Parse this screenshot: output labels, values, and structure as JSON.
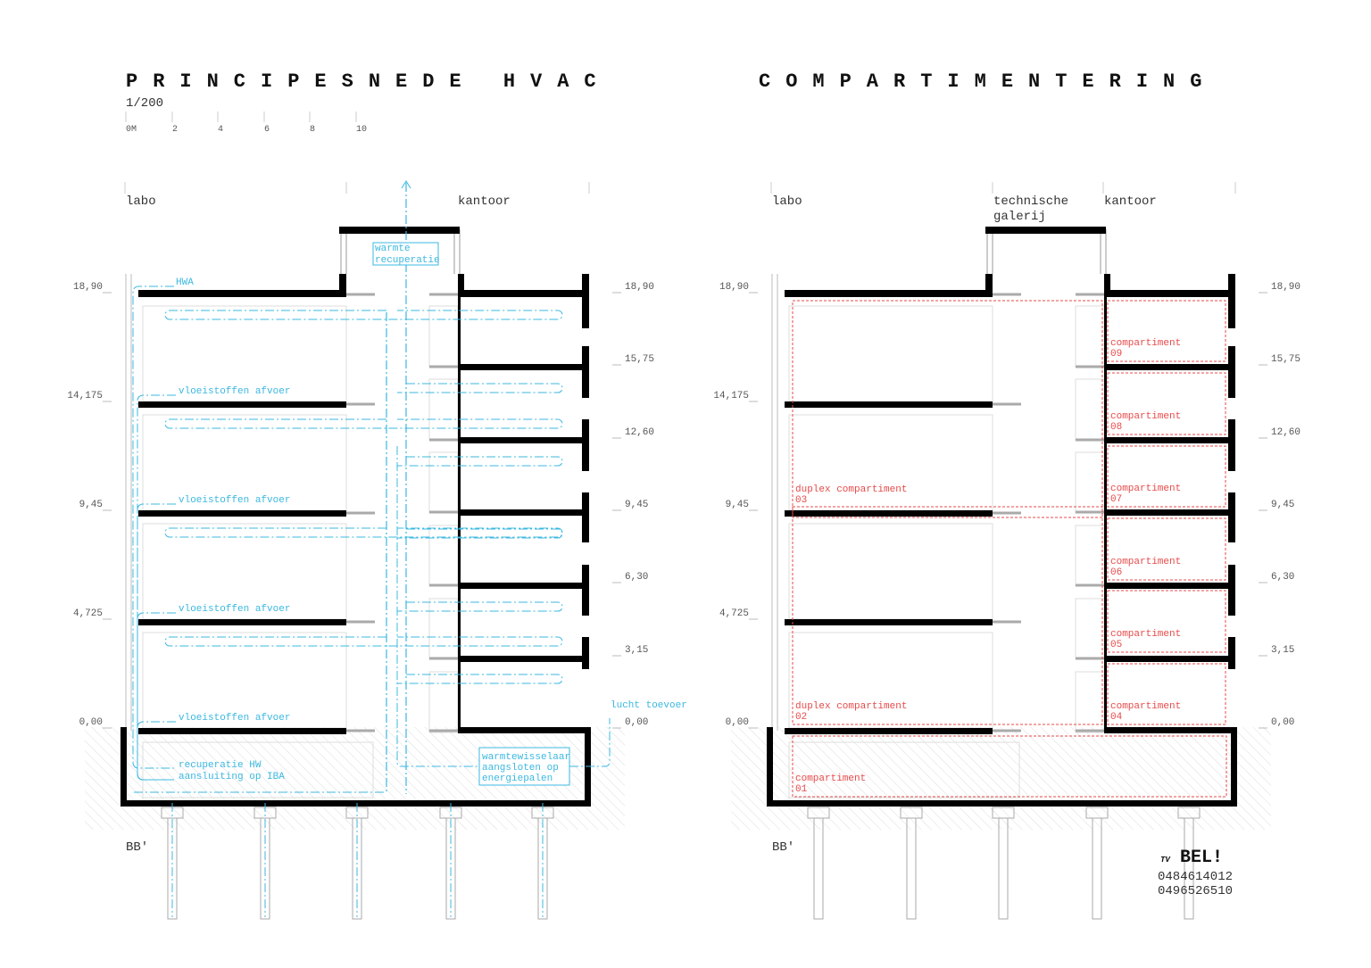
{
  "left": {
    "title": "PRINCIPESNEDE HVAC",
    "scale": "1/200",
    "scale_bar": [
      "0M",
      "2",
      "4",
      "6",
      "8",
      "10"
    ],
    "zones": [
      "labo",
      "kantoor"
    ],
    "levels_left": [
      "18,90",
      "14,175",
      "9,45",
      "4,725",
      "0,00"
    ],
    "levels_right": [
      "18,90",
      "15,75",
      "12,60",
      "9,45",
      "6,30",
      "3,15",
      "0,00"
    ],
    "annotations": {
      "hwa": "HWA",
      "afvoer": [
        "vloeistoffen afvoer",
        "vloeistoffen afvoer",
        "vloeistoffen afvoer",
        "vloeistoffen afvoer"
      ],
      "recuperatie": [
        "warmte",
        "recuperatie"
      ],
      "lucht": "lucht toevoer",
      "iba": [
        "recuperatie HW",
        "aansluiting op IBA"
      ],
      "warmtewisselaar": [
        "warmtewisselaar",
        "aangsloten op",
        "energiepalen"
      ]
    },
    "section": "BB'"
  },
  "right": {
    "title": "COMPARTIMENTERING",
    "zones": [
      "labo",
      "technische",
      "galerij",
      "kantoor"
    ],
    "levels_left": [
      "18,90",
      "14,175",
      "9,45",
      "4,725",
      "0,00"
    ],
    "levels_right": [
      "18,90",
      "15,75",
      "12,60",
      "9,45",
      "6,30",
      "3,15",
      "0,00"
    ],
    "compartments": [
      {
        "name": "compartiment",
        "number": "09"
      },
      {
        "name": "compartiment",
        "number": "08"
      },
      {
        "name": "compartiment",
        "number": "07"
      },
      {
        "name": "compartiment",
        "number": "06"
      },
      {
        "name": "compartiment",
        "number": "05"
      },
      {
        "name": "compartiment",
        "number": "04"
      },
      {
        "name": "duplex compartiment",
        "number": "03"
      },
      {
        "name": "duplex compartiment",
        "number": "02"
      },
      {
        "name": "compartiment",
        "number": "01"
      }
    ],
    "section": "BB'"
  },
  "logo": {
    "prefix": "TV",
    "name": "BEL!",
    "phones": [
      "0484614012",
      "0496526510"
    ]
  }
}
